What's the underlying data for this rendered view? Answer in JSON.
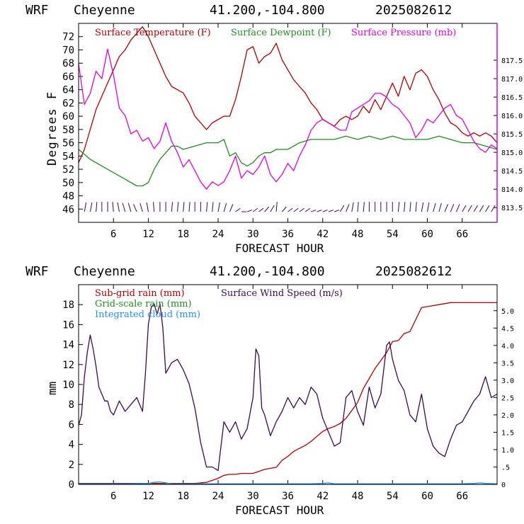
{
  "chart_data": [
    {
      "type": "line",
      "header": {
        "model": "WRF",
        "station": "Cheyenne",
        "coords": "41.200,-104.800",
        "run": "2025082612"
      },
      "xlabel": "FORECAST HOUR",
      "ylabel": "Degrees F",
      "xlim": [
        0,
        72
      ],
      "ylim": [
        44,
        74
      ],
      "y2lim": [
        813.1,
        818.5
      ],
      "xticks": [
        6,
        12,
        18,
        24,
        30,
        36,
        42,
        48,
        54,
        60,
        66
      ],
      "xtick_labels": [
        "6",
        "12",
        "18",
        "24",
        "30",
        "36",
        "42",
        "48",
        "54",
        "60",
        "66"
      ],
      "yticks": [
        46,
        48,
        50,
        52,
        54,
        56,
        58,
        60,
        62,
        64,
        66,
        68,
        70,
        72
      ],
      "ytick_labels": [
        "46",
        "48",
        "50",
        "52",
        "54",
        "56",
        "58",
        "60",
        "62",
        "64",
        "66",
        "68",
        "70",
        "72"
      ],
      "y2ticks": [
        813.5,
        814.0,
        814.5,
        815.0,
        815.5,
        816.0,
        816.5,
        817.0,
        817.5
      ],
      "y2tick_labels": [
        "813.5",
        "814.0",
        "814.5",
        "815.0",
        "815.5",
        "816.0",
        "816.5",
        "817.0",
        "817.5"
      ],
      "series": [
        {
          "name": "Surface Temperature (F)",
          "axis": "left",
          "color": "#b00000",
          "x": [
            0,
            1,
            2,
            3,
            4,
            5,
            6,
            7,
            8,
            9,
            10,
            11,
            12,
            13,
            14,
            15,
            16,
            17,
            18,
            19,
            20,
            21,
            22,
            23,
            24,
            25,
            26,
            27,
            28,
            29,
            30,
            31,
            32,
            33,
            34,
            35,
            36,
            37,
            38,
            39,
            40,
            41,
            42,
            43,
            44,
            45,
            46,
            47,
            48,
            49,
            50,
            51,
            52,
            53,
            54,
            55,
            56,
            57,
            58,
            59,
            60,
            61,
            62,
            63,
            64,
            65,
            66,
            67,
            68,
            69,
            70,
            71,
            72
          ],
          "y": [
            53,
            55,
            58,
            61,
            63,
            65,
            67,
            69,
            70,
            71.5,
            72.5,
            73.5,
            72,
            70,
            68,
            66,
            64.5,
            64,
            63.5,
            62,
            60,
            59,
            58,
            59,
            59.5,
            60,
            60,
            62.5,
            66,
            70,
            70.5,
            68,
            69,
            69.5,
            71,
            68.5,
            67,
            65.5,
            64.5,
            63.5,
            62,
            61,
            59.5,
            59,
            58.5,
            59.5,
            60,
            59.5,
            60,
            61.5,
            60.5,
            62.5,
            61,
            63,
            65,
            63,
            66,
            64,
            66.5,
            67,
            66,
            64,
            62.5,
            60.5,
            59,
            58.5,
            57.5,
            57,
            57.5,
            57,
            57.5,
            57,
            56
          ]
        },
        {
          "name": "Surface Dewpoint (F)",
          "axis": "left",
          "color": "#228b22",
          "x": [
            0,
            2,
            4,
            6,
            8,
            10,
            11,
            12,
            13,
            14,
            15,
            16,
            17,
            18,
            20,
            22,
            24,
            25,
            26,
            27,
            28,
            29,
            30,
            31,
            32,
            33,
            34,
            35,
            36,
            37,
            38,
            40,
            42,
            44,
            46,
            48,
            50,
            52,
            54,
            56,
            58,
            60,
            62,
            64,
            66,
            68,
            70,
            72
          ],
          "y": [
            55,
            53.5,
            52.5,
            51.5,
            50.5,
            49.5,
            49.5,
            50,
            52,
            53.5,
            54.5,
            55.5,
            55.5,
            55,
            55.5,
            56,
            56,
            56.5,
            54,
            54.5,
            53,
            52.5,
            53,
            54,
            54.5,
            54.5,
            55,
            55,
            55,
            55.5,
            56,
            56.5,
            56.5,
            56.5,
            57,
            56.5,
            57,
            56.5,
            57,
            56.5,
            56.5,
            56.5,
            57,
            56.5,
            56,
            56,
            55.5,
            55
          ]
        },
        {
          "name": "Surface Pressure (mb)",
          "axis": "right",
          "color": "#e000e0",
          "x": [
            0,
            1,
            2,
            3,
            4,
            5,
            6,
            7,
            8,
            9,
            10,
            11,
            12,
            13,
            14,
            15,
            16,
            17,
            18,
            19,
            20,
            21,
            22,
            23,
            24,
            25,
            26,
            27,
            28,
            29,
            30,
            31,
            32,
            33,
            34,
            35,
            36,
            37,
            38,
            39,
            40,
            41,
            42,
            43,
            44,
            45,
            46,
            47,
            48,
            49,
            50,
            51,
            52,
            53,
            54,
            55,
            56,
            57,
            58,
            59,
            60,
            61,
            62,
            63,
            64,
            65,
            66,
            67,
            68,
            69,
            70,
            71,
            72
          ],
          "y": [
            817.4,
            816.3,
            816.6,
            817.2,
            817.0,
            817.8,
            817.1,
            816.2,
            816.0,
            815.5,
            815.6,
            815.3,
            815.4,
            815.1,
            815.3,
            815.8,
            815.3,
            815.0,
            814.6,
            814.8,
            814.5,
            814.2,
            814.0,
            814.2,
            814.1,
            814.2,
            814.5,
            814.9,
            814.3,
            814.5,
            814.4,
            814.6,
            814.9,
            814.4,
            814.2,
            814.4,
            814.7,
            814.5,
            814.9,
            815.2,
            815.6,
            815.8,
            815.9,
            815.8,
            815.7,
            815.6,
            815.6,
            816.1,
            816.2,
            816.3,
            816.4,
            816.6,
            816.6,
            816.5,
            816.3,
            816.2,
            816.0,
            815.8,
            815.4,
            815.6,
            815.9,
            815.8,
            816.0,
            816.2,
            816.3,
            816.0,
            815.9,
            815.6,
            815.3,
            815.1,
            815.0,
            815.2,
            815.1
          ]
        }
      ],
      "wind_barbs": {
        "x": [
          1,
          2,
          3,
          4,
          5,
          6,
          7,
          8,
          9,
          10,
          11,
          12,
          13,
          14,
          15,
          16,
          17,
          18,
          19,
          20,
          21,
          22,
          23,
          24,
          25,
          26,
          27,
          28,
          29,
          30,
          31,
          32,
          33,
          34,
          35,
          36,
          37,
          38,
          39,
          40,
          41,
          42,
          43,
          44,
          45,
          46,
          47,
          48,
          49,
          50,
          51,
          52,
          53,
          54,
          55,
          56,
          57,
          58,
          59,
          60,
          61,
          62,
          63,
          64,
          65,
          66,
          67,
          68,
          69,
          70,
          71
        ],
        "direction_deg": [
          200,
          200,
          190,
          180,
          180,
          170,
          160,
          150,
          150,
          140,
          150,
          160,
          170,
          180,
          180,
          190,
          190,
          190,
          190,
          180,
          180,
          190,
          190,
          200,
          210,
          220,
          250,
          270,
          280,
          290,
          290,
          300,
          310,
          350,
          300,
          290,
          290,
          290,
          290,
          280,
          280,
          280,
          280,
          280,
          230,
          220,
          200,
          190,
          190,
          180,
          180,
          180,
          180,
          180,
          190,
          190,
          190,
          190,
          200,
          200,
          210,
          210,
          220,
          220,
          220,
          230,
          230,
          230,
          230,
          230,
          230
        ]
      }
    },
    {
      "type": "line",
      "header": {
        "model": "WRF",
        "station": "Cheyenne",
        "coords": "41.200,-104.800",
        "run": "2025082612"
      },
      "xlabel": "FORECAST HOUR",
      "ylabel": "mm",
      "xlim": [
        0,
        72
      ],
      "ylim": [
        0,
        20
      ],
      "y2lim": [
        0,
        5.75
      ],
      "xticks": [
        6,
        12,
        18,
        24,
        30,
        36,
        42,
        48,
        54,
        60,
        66
      ],
      "xtick_labels": [
        "6",
        "12",
        "18",
        "24",
        "30",
        "36",
        "42",
        "48",
        "54",
        "60",
        "66"
      ],
      "yticks": [
        0,
        2,
        4,
        6,
        8,
        10,
        12,
        14,
        16,
        18
      ],
      "ytick_labels": [
        "0",
        "2",
        "4",
        "6",
        "8",
        "10",
        "12",
        "14",
        "16",
        "18"
      ],
      "y2ticks": [
        0,
        0.5,
        1.0,
        1.5,
        2.0,
        2.5,
        3.0,
        3.5,
        4.0,
        4.5,
        5.0
      ],
      "y2tick_labels": [
        "0",
        ".5",
        "1.0",
        "1.5",
        "2.0",
        "2.5",
        "3.0",
        "3.5",
        "4.0",
        "4.5",
        "5.0"
      ],
      "series": [
        {
          "name": "Sub-grid rain (mm)",
          "axis": "left",
          "color": "#b00000",
          "x": [
            0,
            20,
            22,
            24,
            25,
            26,
            27,
            28,
            30,
            31,
            32,
            33,
            34,
            35,
            36,
            37,
            38,
            39,
            40,
            41,
            42,
            43,
            44,
            45,
            46,
            47,
            48,
            49,
            50,
            51,
            52,
            53,
            54,
            55,
            56,
            57,
            58,
            59,
            60,
            62,
            64,
            66,
            68,
            70,
            72
          ],
          "y": [
            0.1,
            0.1,
            0.2,
            0.6,
            0.9,
            1.0,
            1.0,
            1.1,
            1.1,
            1.3,
            1.5,
            1.6,
            1.7,
            2.4,
            2.8,
            3.3,
            3.6,
            3.9,
            4.3,
            4.8,
            5.3,
            5.6,
            5.8,
            6.1,
            6.6,
            7.4,
            8.2,
            9.6,
            10.6,
            11.6,
            12.4,
            13.2,
            14.3,
            14.4,
            15.1,
            15.3,
            16.5,
            17.7,
            17.8,
            18.0,
            18.2,
            18.2,
            18.2,
            18.2,
            18.2
          ]
        },
        {
          "name": "Grid-scale rain (mm)",
          "axis": "left",
          "color": "#228b22",
          "x": [
            0,
            72
          ],
          "y": [
            0,
            0
          ]
        },
        {
          "name": "Integrated cloud (mm)",
          "axis": "left",
          "color": "#1e90ff",
          "x": [
            0,
            8,
            12,
            13,
            14,
            15,
            16,
            20,
            40,
            42,
            43,
            44,
            60,
            66,
            68,
            69,
            70,
            72
          ],
          "y": [
            0.05,
            0.05,
            0.1,
            0.2,
            0.25,
            0.15,
            0.05,
            0.05,
            0.05,
            0.1,
            0.15,
            0.05,
            0.05,
            0.05,
            0.1,
            0.15,
            0.1,
            0.05
          ]
        },
        {
          "name": "Surface Wind Speed (m/s)",
          "axis": "right",
          "color": "#3a0a50",
          "x": [
            0,
            0.5,
            1,
            1.5,
            2,
            2.5,
            3,
            3.5,
            4,
            4.5,
            5,
            5.5,
            6,
            7,
            8,
            9,
            10,
            11,
            11.5,
            12,
            12.5,
            13,
            13.5,
            14,
            14.5,
            15,
            16,
            17,
            18,
            19,
            20,
            21,
            22,
            23,
            24,
            25,
            26,
            27,
            28,
            29,
            30,
            30.5,
            31,
            31.5,
            32,
            33,
            34,
            35,
            36,
            37,
            38,
            39,
            40,
            41,
            42,
            43,
            44,
            45,
            46,
            47,
            48,
            49,
            50,
            51,
            52,
            53,
            53.5,
            54,
            55,
            56,
            57,
            58,
            59,
            60,
            61,
            62,
            63,
            64,
            65,
            66,
            67,
            68,
            69,
            70,
            71,
            72
          ],
          "y": [
            1.7,
            2.0,
            3.1,
            3.8,
            4.3,
            3.9,
            3.4,
            2.8,
            2.6,
            2.4,
            2.4,
            2.1,
            2.0,
            2.4,
            2.1,
            2.3,
            2.5,
            2.1,
            3.2,
            4.6,
            5.1,
            5.2,
            4.9,
            5.2,
            4.5,
            3.2,
            3.5,
            3.6,
            3.3,
            2.9,
            2.2,
            1.2,
            0.5,
            0.5,
            0.4,
            1.8,
            1.5,
            1.8,
            1.3,
            1.6,
            2.5,
            3.9,
            3.7,
            2.2,
            2.0,
            1.4,
            1.8,
            2.1,
            2.5,
            2.2,
            2.5,
            2.3,
            2.8,
            2.6,
            1.9,
            1.5,
            1.1,
            1.2,
            2.5,
            2.7,
            2.1,
            1.7,
            2.8,
            2.2,
            2.6,
            4.0,
            4.1,
            3.6,
            3.0,
            2.7,
            2.0,
            1.8,
            2.6,
            1.6,
            1.1,
            0.9,
            0.8,
            1.3,
            1.7,
            1.8,
            2.1,
            2.4,
            2.6,
            3.1,
            2.5,
            2.6
          ]
        }
      ]
    }
  ]
}
